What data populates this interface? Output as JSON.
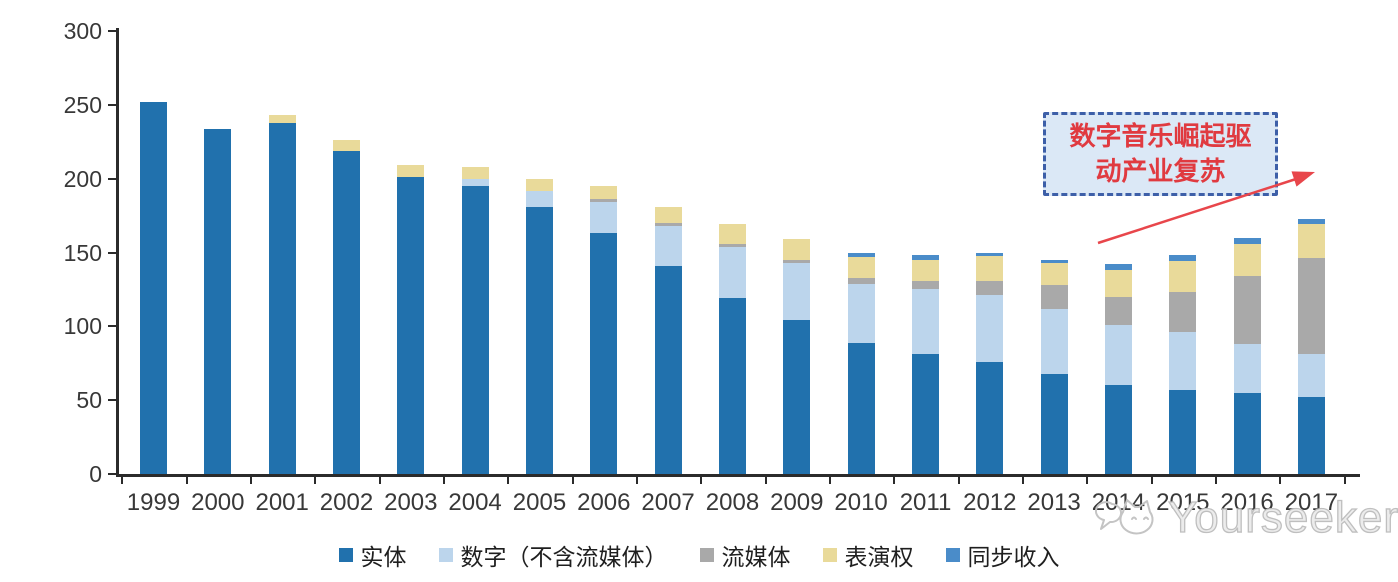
{
  "chart_data": {
    "type": "bar",
    "stacked": true,
    "categories": [
      "1999",
      "2000",
      "2001",
      "2002",
      "2003",
      "2004",
      "2005",
      "2006",
      "2007",
      "2008",
      "2009",
      "2010",
      "2011",
      "2012",
      "2013",
      "2014",
      "2015",
      "2016",
      "2017"
    ],
    "series": [
      {
        "name": "实体",
        "color": "#2171ad",
        "values": [
          252,
          234,
          238,
          219,
          201,
          195,
          181,
          163,
          141,
          119,
          104,
          89,
          81,
          76,
          68,
          60,
          57,
          55,
          52
        ]
      },
      {
        "name": "数字（不含流媒体）",
        "color": "#bcd5ec",
        "values": [
          0,
          0,
          0,
          0,
          0,
          5,
          11,
          21,
          27,
          35,
          39,
          40,
          44,
          45,
          44,
          41,
          39,
          33,
          29
        ]
      },
      {
        "name": "流媒体",
        "color": "#a9a9a9",
        "values": [
          0,
          0,
          0,
          0,
          0,
          0,
          0,
          2,
          2,
          2,
          2,
          4,
          6,
          10,
          16,
          19,
          27,
          46,
          65
        ]
      },
      {
        "name": "表演权",
        "color": "#e9da9a",
        "values": [
          0,
          0,
          5,
          7,
          8,
          8,
          8,
          9,
          11,
          13,
          14,
          14,
          14,
          17,
          15,
          18,
          21,
          22,
          23
        ]
      },
      {
        "name": "同步收入",
        "color": "#4a8cc9",
        "values": [
          0,
          0,
          0,
          0,
          0,
          0,
          0,
          0,
          0,
          0,
          0,
          3,
          3,
          2,
          2,
          4,
          4,
          4,
          4
        ]
      }
    ],
    "ylim": [
      0,
      300
    ],
    "y_ticks": [
      0,
      50,
      100,
      150,
      200,
      250,
      300
    ],
    "xlabel": "",
    "ylabel": "",
    "title": "",
    "grid": false,
    "legend_position": "bottom"
  },
  "annotation": {
    "line1": "数字音乐崛起驱",
    "line2": "动产业复苏",
    "fill_color": "#dbe8f6",
    "border_color": "#3d5fa8",
    "text_color": "#e03a40",
    "arrow_color": "#e8464b"
  },
  "watermark": {
    "text": "Yourseeker",
    "logo": "cat-face-with-speech-bubble",
    "color": "#bfbfbf"
  }
}
